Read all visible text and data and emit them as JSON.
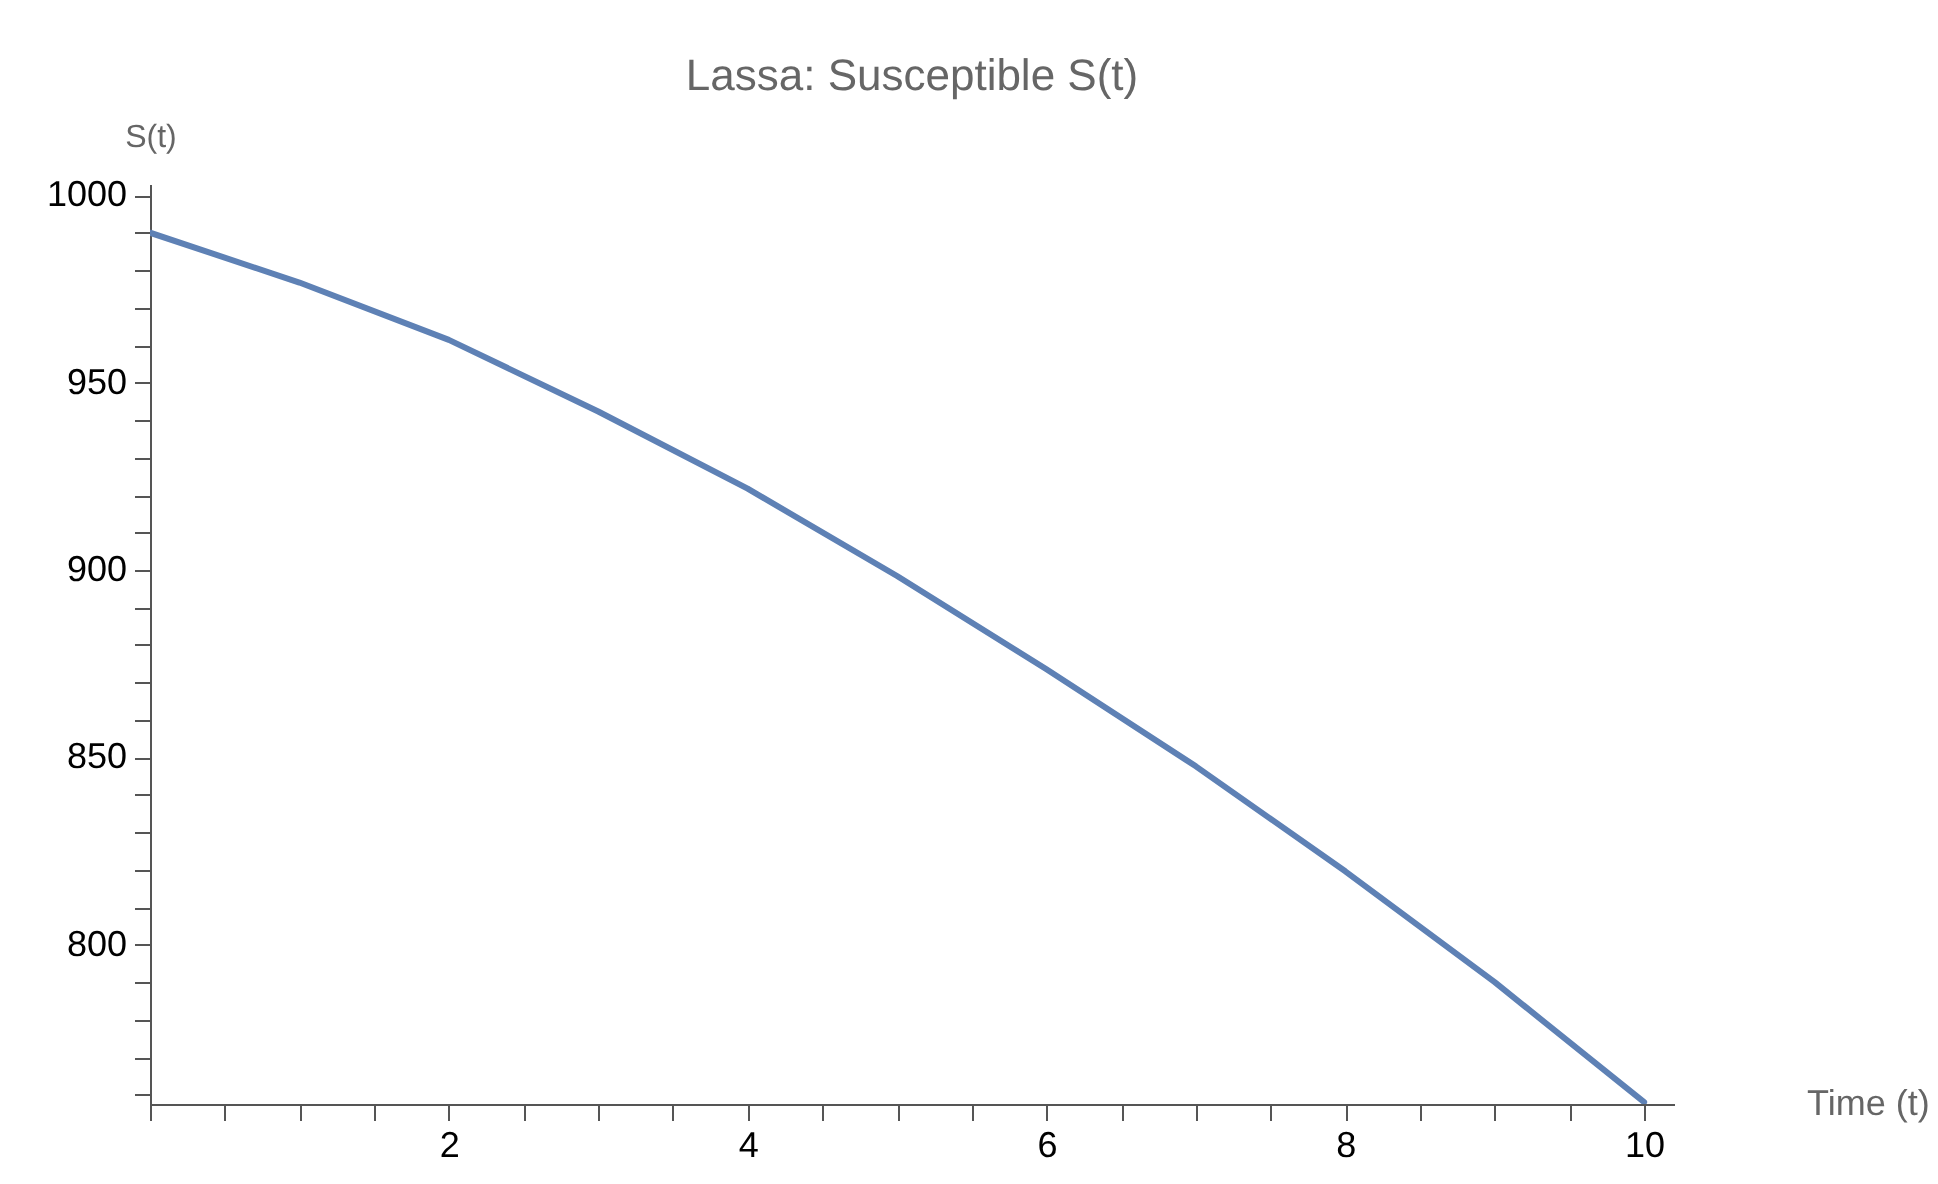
{
  "chart_data": {
    "type": "line",
    "title": "Lassa: Susceptible S(t)",
    "xlabel": "Time (t)",
    "ylabel": "S(t)",
    "x": [
      0,
      1,
      2,
      3,
      4,
      5,
      6,
      7,
      8,
      9,
      10
    ],
    "series": [
      {
        "color": "#5e81b5",
        "values": [
          990,
          976.7,
          961.4,
          942.3,
          921.7,
          898.4,
          873.5,
          847.6,
          819.6,
          790,
          758
        ]
      }
    ],
    "xlim": [
      0,
      10.2
    ],
    "ylim": [
      757.5,
      1003
    ],
    "xticks": [
      {
        "value": 0,
        "label": null
      },
      {
        "value": 0.5,
        "label": null
      },
      {
        "value": 1,
        "label": null
      },
      {
        "value": 1.5,
        "label": null
      },
      2,
      {
        "value": 2.5,
        "label": null
      },
      {
        "value": 3,
        "label": null
      },
      {
        "value": 3.5,
        "label": null
      },
      4,
      {
        "value": 4.5,
        "label": null
      },
      {
        "value": 5,
        "label": null
      },
      {
        "value": 5.5,
        "label": null
      },
      6,
      {
        "value": 6.5,
        "label": null
      },
      {
        "value": 7,
        "label": null
      },
      {
        "value": 7.5,
        "label": null
      },
      8,
      {
        "value": 8.5,
        "label": null
      },
      {
        "value": 9,
        "label": null
      },
      {
        "value": 9.5,
        "label": null
      },
      10
    ],
    "yticks": [
      {
        "value": 760,
        "label": null
      },
      {
        "value": 770,
        "label": null
      },
      {
        "value": 780,
        "label": null
      },
      {
        "value": 790,
        "label": null
      },
      800,
      {
        "value": 810,
        "label": null
      },
      {
        "value": 820,
        "label": null
      },
      {
        "value": 830,
        "label": null
      },
      {
        "value": 840,
        "label": null
      },
      850,
      {
        "value": 860,
        "label": null
      },
      {
        "value": 870,
        "label": null
      },
      {
        "value": 880,
        "label": null
      },
      {
        "value": 890,
        "label": null
      },
      900,
      {
        "value": 910,
        "label": null
      },
      {
        "value": 920,
        "label": null
      },
      {
        "value": 930,
        "label": null
      },
      {
        "value": 940,
        "label": null
      },
      950,
      {
        "value": 960,
        "label": null
      },
      {
        "value": 970,
        "label": null
      },
      {
        "value": 980,
        "label": null
      },
      {
        "value": 990,
        "label": null
      },
      1000
    ],
    "grid": false,
    "marker": "none",
    "line_style": "solid"
  }
}
